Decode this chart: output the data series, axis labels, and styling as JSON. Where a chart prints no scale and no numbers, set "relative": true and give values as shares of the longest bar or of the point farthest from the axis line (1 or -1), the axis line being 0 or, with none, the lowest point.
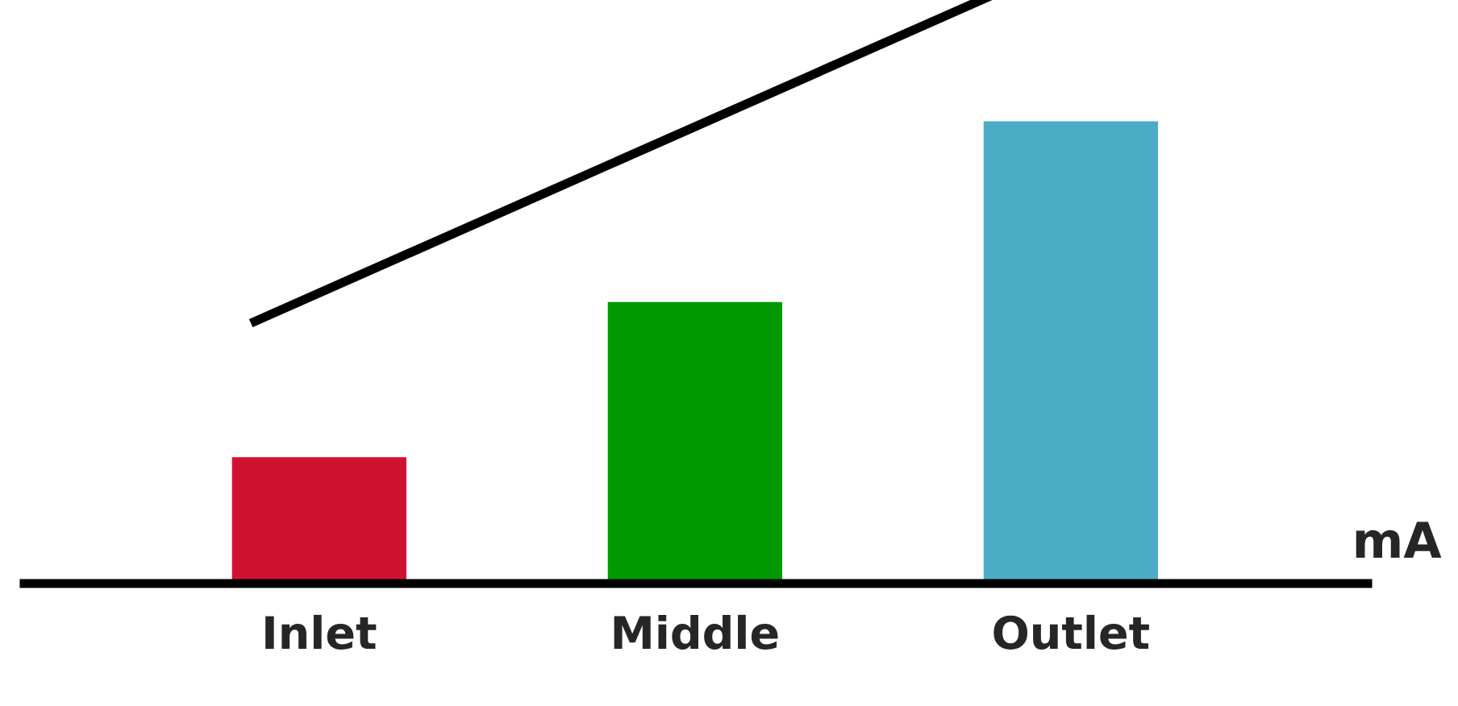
{
  "chart_data": {
    "type": "bar",
    "relative": true,
    "ylabel": "mA",
    "categories": [
      "Inlet",
      "Middle",
      "Outlet"
    ],
    "values": [
      0.275,
      0.61,
      1
    ],
    "colors": [
      "#d01232",
      "#009a00",
      "#4bacc6"
    ],
    "grid": false,
    "legend": false
  }
}
